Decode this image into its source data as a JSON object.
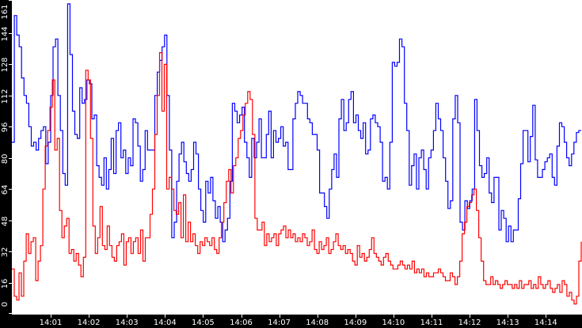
{
  "colors": {
    "background": "#000000",
    "plot_bg": "#ffffff",
    "series_blue": "#0000ff",
    "series_red": "#ff0000",
    "axis_text": "#ffffff"
  },
  "chart_data": {
    "type": "line",
    "title": "",
    "xlabel": "",
    "ylabel": "",
    "ylim": [
      0,
      161
    ],
    "grid": false,
    "legend": "none",
    "y_ticks": [
      "0",
      "16",
      "32",
      "48",
      "64",
      "80",
      "96",
      "112",
      "128",
      "144",
      "161"
    ],
    "x_ticks": [
      "14:01",
      "14:02",
      "14:03",
      "14:04",
      "14:05",
      "14:06",
      "14:07",
      "14:08",
      "14:09",
      "14:10",
      "14:11",
      "14:12",
      "14:13",
      "14:14"
    ],
    "x_range": [
      "14:00",
      "14:15"
    ],
    "series": [
      {
        "name": "blue",
        "color": "#0000ff",
        "values": [
          88,
          153,
          143,
          137,
          121,
          112,
          108,
          96,
          86,
          88,
          84,
          90,
          94,
          96,
          77,
          88,
          112,
          137,
          141,
          112,
          94,
          72,
          66,
          159,
          133,
          104,
          92,
          90,
          116,
          108,
          110,
          120,
          118,
          100,
          102,
          76,
          70,
          66,
          80,
          64,
          74,
          90,
          72,
          94,
          98,
          80,
          84,
          72,
          80,
          76,
          100,
          98,
          86,
          68,
          74,
          94,
          84,
          84,
          84,
          112,
          124,
          130,
          137,
          143,
          112,
          84,
          39,
          47,
          68,
          82,
          88,
          78,
          72,
          68,
          74,
          88,
          82,
          64,
          53,
          47,
          68,
          62,
          70,
          58,
          49,
          55,
          47,
          37,
          43,
          49,
          68,
          108,
          104,
          98,
          102,
          106,
          88,
          80,
          70,
          90,
          80,
          88,
          100,
          80,
          80,
          92,
          104,
          80,
          94,
          88,
          90,
          96,
          86,
          88,
          74,
          74,
          100,
          108,
          114,
          112,
          108,
          108,
          100,
          98,
          92,
          92,
          84,
          62,
          62,
          55,
          49,
          64,
          74,
          82,
          70,
          100,
          110,
          94,
          98,
          110,
          114,
          98,
          102,
          94,
          90,
          98,
          82,
          84,
          100,
          102,
          98,
          96,
          88,
          68,
          70,
          64,
          88,
          129,
          127,
          129,
          141,
          137,
          108,
          94,
          66,
          76,
          82,
          64,
          80,
          84,
          74,
          64,
          80,
          84,
          94,
          108,
          100,
          94,
          80,
          68,
          54,
          58,
          100,
          112,
          98,
          47,
          43,
          58,
          54,
          58,
          64,
          110,
          94,
          76,
          70,
          72,
          80,
          62,
          57,
          70,
          70,
          43,
          53,
          49,
          37,
          45,
          37,
          43,
          43,
          59,
          77,
          94,
          94,
          78,
          91,
          107,
          79,
          70,
          70,
          74,
          78,
          80,
          82,
          70,
          66,
          86,
          98,
          96,
          88,
          80,
          76,
          82,
          88,
          93,
          94,
          94
        ]
      },
      {
        "name": "red",
        "color": "#ff0000",
        "values": [
          23,
          9,
          7,
          21,
          9,
          27,
          41,
          31,
          37,
          39,
          17,
          27,
          35,
          64,
          86,
          94,
          106,
          120,
          84,
          90,
          53,
          39,
          45,
          49,
          31,
          33,
          27,
          31,
          25,
          19,
          29,
          125,
          120,
          90,
          45,
          31,
          39,
          55,
          35,
          33,
          45,
          35,
          29,
          27,
          35,
          37,
          41,
          25,
          37,
          39,
          31,
          37,
          39,
          31,
          43,
          27,
          39,
          39,
          51,
          64,
          92,
          112,
          134,
          104,
          128,
          64,
          70,
          64,
          53,
          51,
          57,
          39,
          61,
          37,
          47,
          37,
          41,
          35,
          31,
          37,
          35,
          39,
          37,
          35,
          39,
          33,
          31,
          39,
          47,
          57,
          68,
          74,
          62,
          76,
          80,
          90,
          94,
          102,
          108,
          114,
          110,
          92,
          49,
          43,
          43,
          47,
          35,
          41,
          37,
          39,
          41,
          35,
          41,
          43,
          45,
          39,
          43,
          39,
          41,
          37,
          39,
          37,
          41,
          39,
          35,
          37,
          43,
          33,
          31,
          37,
          33,
          35,
          39,
          31,
          33,
          37,
          41,
          35,
          33,
          35,
          31,
          33,
          31,
          27,
          25,
          35,
          29,
          31,
          27,
          29,
          33,
          39,
          31,
          29,
          27,
          25,
          29,
          31,
          27,
          25,
          23,
          23,
          25,
          27,
          25,
          23,
          25,
          23,
          27,
          21,
          23,
          21,
          23,
          19,
          21,
          19,
          19,
          21,
          21,
          23,
          21,
          19,
          17,
          17,
          21,
          19,
          15,
          19,
          27,
          41,
          47,
          55,
          57,
          61,
          64,
          53,
          39,
          27,
          17,
          15,
          15,
          19,
          15,
          17,
          15,
          13,
          15,
          17,
          15,
          15,
          13,
          15,
          13,
          17,
          13,
          15,
          15,
          17,
          13,
          15,
          13,
          19,
          15,
          13,
          15,
          17,
          13,
          11,
          13,
          15,
          11,
          17,
          15,
          9,
          11,
          7,
          5,
          9,
          27,
          37
        ]
      }
    ]
  }
}
